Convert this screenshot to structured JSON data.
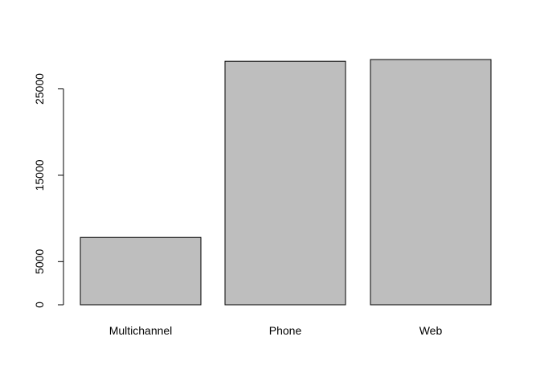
{
  "chart_data": {
    "type": "bar",
    "categories": [
      "Multichannel",
      "Phone",
      "Web"
    ],
    "values": [
      7800,
      28200,
      28400
    ],
    "y_ticks": [
      0,
      5000,
      15000,
      25000
    ],
    "ylim": [
      0,
      29800
    ],
    "title": "",
    "xlabel": "",
    "ylabel": "",
    "grid": false,
    "bar_color": "#bebebe",
    "border_color": "#000000"
  }
}
